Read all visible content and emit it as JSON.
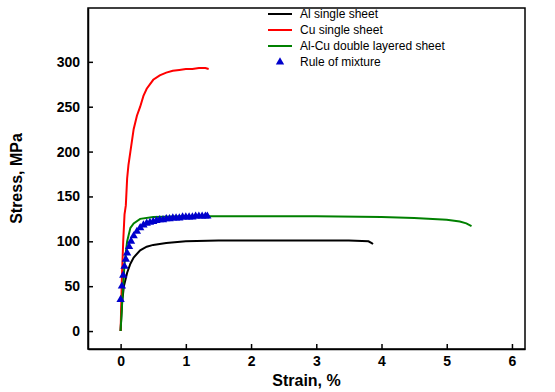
{
  "chart_data": {
    "type": "line",
    "x_label": "Strain, %",
    "y_label": "Stress, MPa",
    "xlim": [
      -0.5,
      6.2
    ],
    "ylim": [
      -20,
      360
    ],
    "xticks": [
      0,
      1,
      2,
      3,
      4,
      5,
      6
    ],
    "yticks": [
      0,
      50,
      100,
      150,
      200,
      250,
      300
    ],
    "grid": false,
    "legend": "upper right",
    "series": [
      {
        "name": "Al single sheet",
        "color": "#000000",
        "type": "line",
        "line_style": "solid",
        "x": [
          0,
          0.02,
          0.05,
          0.1,
          0.15,
          0.2,
          0.3,
          0.4,
          0.5,
          0.7,
          1,
          1.5,
          2,
          2.5,
          3,
          3.5,
          3.8,
          3.85,
          3.87
        ],
        "values": [
          0,
          30,
          50,
          65,
          75,
          82,
          90,
          94,
          96,
          98,
          100,
          101,
          101,
          101,
          101,
          101,
          100,
          98,
          97
        ]
      },
      {
        "name": "Cu single sheet",
        "color": "#ff0000",
        "type": "line",
        "line_style": "solid",
        "x": [
          0,
          0.02,
          0.04,
          0.06,
          0.08,
          0.1,
          0.12,
          0.15,
          0.18,
          0.2,
          0.25,
          0.3,
          0.35,
          0.4,
          0.5,
          0.6,
          0.7,
          0.8,
          0.9,
          1.0,
          1.1,
          1.2,
          1.3,
          1.35
        ],
        "values": [
          0,
          60,
          100,
          130,
          140,
          170,
          185,
          200,
          215,
          225,
          240,
          250,
          262,
          270,
          280,
          285,
          288,
          290,
          291,
          292,
          292,
          293,
          293,
          292
        ]
      },
      {
        "name": "Al-Cu double layered sheet",
        "color": "#008000",
        "type": "line",
        "line_style": "solid",
        "x": [
          0,
          0.03,
          0.06,
          0.1,
          0.15,
          0.2,
          0.3,
          0.5,
          1,
          2,
          3,
          4,
          4.5,
          5,
          5.2,
          5.3,
          5.38
        ],
        "values": [
          0,
          40,
          75,
          100,
          115,
          120,
          125,
          127,
          128,
          128,
          128,
          127,
          126,
          124,
          122,
          120,
          117
        ]
      },
      {
        "name": "Rule of mixture",
        "color": "#0000cc",
        "type": "scatter",
        "marker": "triangle",
        "x": [
          0,
          0.02,
          0.04,
          0.06,
          0.08,
          0.1,
          0.13,
          0.16,
          0.2,
          0.25,
          0.3,
          0.35,
          0.4,
          0.45,
          0.5,
          0.55,
          0.6,
          0.65,
          0.7,
          0.75,
          0.8,
          0.85,
          0.9,
          0.95,
          1,
          1.05,
          1.1,
          1.15,
          1.2,
          1.25,
          1.3,
          1.33
        ],
        "values": [
          35,
          50,
          62,
          72,
          80,
          87,
          94,
          100,
          106,
          111,
          115,
          118,
          120,
          121,
          122,
          123,
          124,
          124,
          125,
          125,
          126,
          126,
          126,
          127,
          127,
          127,
          127,
          128,
          128,
          128,
          128,
          128
        ]
      }
    ]
  }
}
